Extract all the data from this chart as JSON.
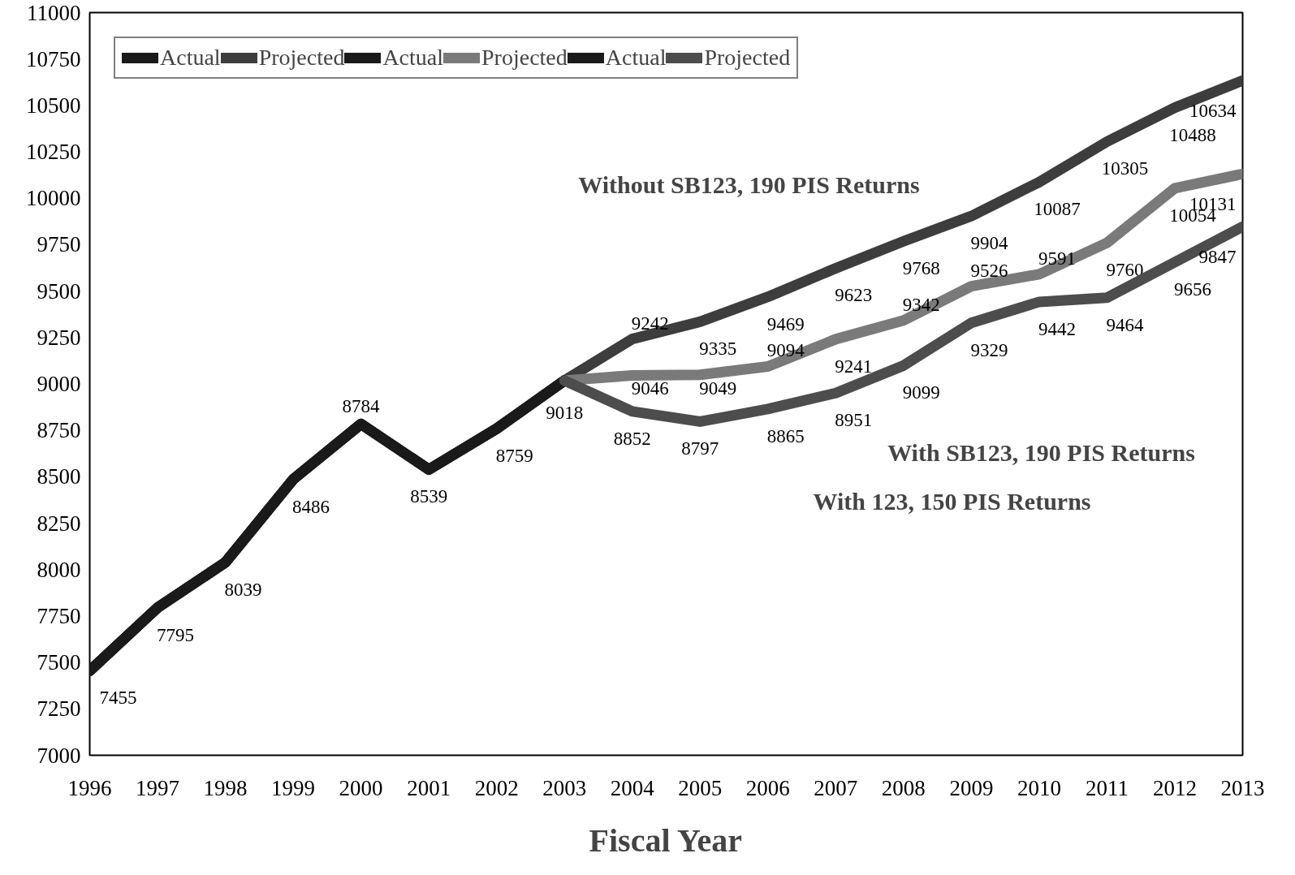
{
  "chart_data": {
    "type": "line",
    "xlabel": "Fiscal Year",
    "x": [
      1996,
      1997,
      1998,
      1999,
      2000,
      2001,
      2002,
      2003,
      2004,
      2005,
      2006,
      2007,
      2008,
      2009,
      2010,
      2011,
      2012,
      2013
    ],
    "xlim": [
      1996,
      2013
    ],
    "xticks": [
      1996,
      1997,
      1998,
      1999,
      2000,
      2001,
      2002,
      2003,
      2004,
      2005,
      2006,
      2007,
      2008,
      2009,
      2010,
      2011,
      2012,
      2013
    ],
    "ylim": [
      7000,
      11000
    ],
    "yticks": [
      7000,
      7250,
      7500,
      7750,
      8000,
      8250,
      8500,
      8750,
      9000,
      9250,
      9500,
      9750,
      10000,
      10250,
      10500,
      10750,
      11000
    ],
    "grid": false,
    "legend": "top left",
    "marker": "none",
    "line_style": "solid",
    "series": [
      {
        "name": "Actual",
        "color": "#1a1a1a",
        "values": [
          7455,
          7795,
          8039,
          8486,
          8784,
          8539,
          8759,
          9018,
          null,
          null,
          null,
          null,
          null,
          null,
          null,
          null,
          null,
          null
        ],
        "value_labels": [
          "7455",
          "7795",
          "8039",
          "8486",
          "8784",
          "8539",
          "8759",
          "9018",
          null,
          null,
          null,
          null,
          null,
          null,
          null,
          null,
          null,
          null
        ]
      },
      {
        "name": "Projected",
        "color": "#3d3d3d",
        "values": [
          null,
          null,
          null,
          null,
          null,
          null,
          null,
          9018,
          9242,
          9335,
          9469,
          9623,
          9768,
          9904,
          10087,
          10305,
          10488,
          10634
        ],
        "value_labels": [
          null,
          null,
          null,
          null,
          null,
          null,
          null,
          null,
          "9242",
          "9335",
          "9469",
          "9623",
          "9768",
          "9904",
          "10087",
          "10305",
          "10488",
          "10634"
        ]
      },
      {
        "name": "Actual",
        "color": "#1a1a1a",
        "values": [
          7455,
          7795,
          8039,
          8486,
          8784,
          8539,
          8759,
          9018,
          null,
          null,
          null,
          null,
          null,
          null,
          null,
          null,
          null,
          null
        ]
      },
      {
        "name": "Projected",
        "color": "#7a7a7a",
        "values": [
          null,
          null,
          null,
          null,
          null,
          null,
          null,
          9018,
          9046,
          9049,
          9094,
          9241,
          9342,
          9526,
          9591,
          9760,
          10054,
          10131
        ],
        "value_labels": [
          null,
          null,
          null,
          null,
          null,
          null,
          null,
          null,
          "9046",
          "9049",
          "9094",
          "9241",
          "9342",
          "9526",
          "9591",
          "9760",
          "10054",
          "10131"
        ]
      },
      {
        "name": "Actual",
        "color": "#1a1a1a",
        "values": [
          7455,
          7795,
          8039,
          8486,
          8784,
          8539,
          8759,
          9018,
          null,
          null,
          null,
          null,
          null,
          null,
          null,
          null,
          null,
          null
        ]
      },
      {
        "name": "Projected",
        "color": "#4d4d4d",
        "values": [
          null,
          null,
          null,
          null,
          null,
          null,
          null,
          9018,
          8852,
          8797,
          8865,
          8951,
          9099,
          9329,
          9442,
          9464,
          9656,
          9847
        ],
        "value_labels": [
          null,
          null,
          null,
          null,
          null,
          null,
          null,
          null,
          "8852",
          "8797",
          "8865",
          "8951",
          "9099",
          "9329",
          "9442",
          "9464",
          "9656",
          "9847"
        ]
      }
    ],
    "annotations": [
      "Without SB123, 190 PIS Returns",
      "With SB123, 190 PIS Returns",
      "With 123, 150 PIS Returns"
    ]
  }
}
